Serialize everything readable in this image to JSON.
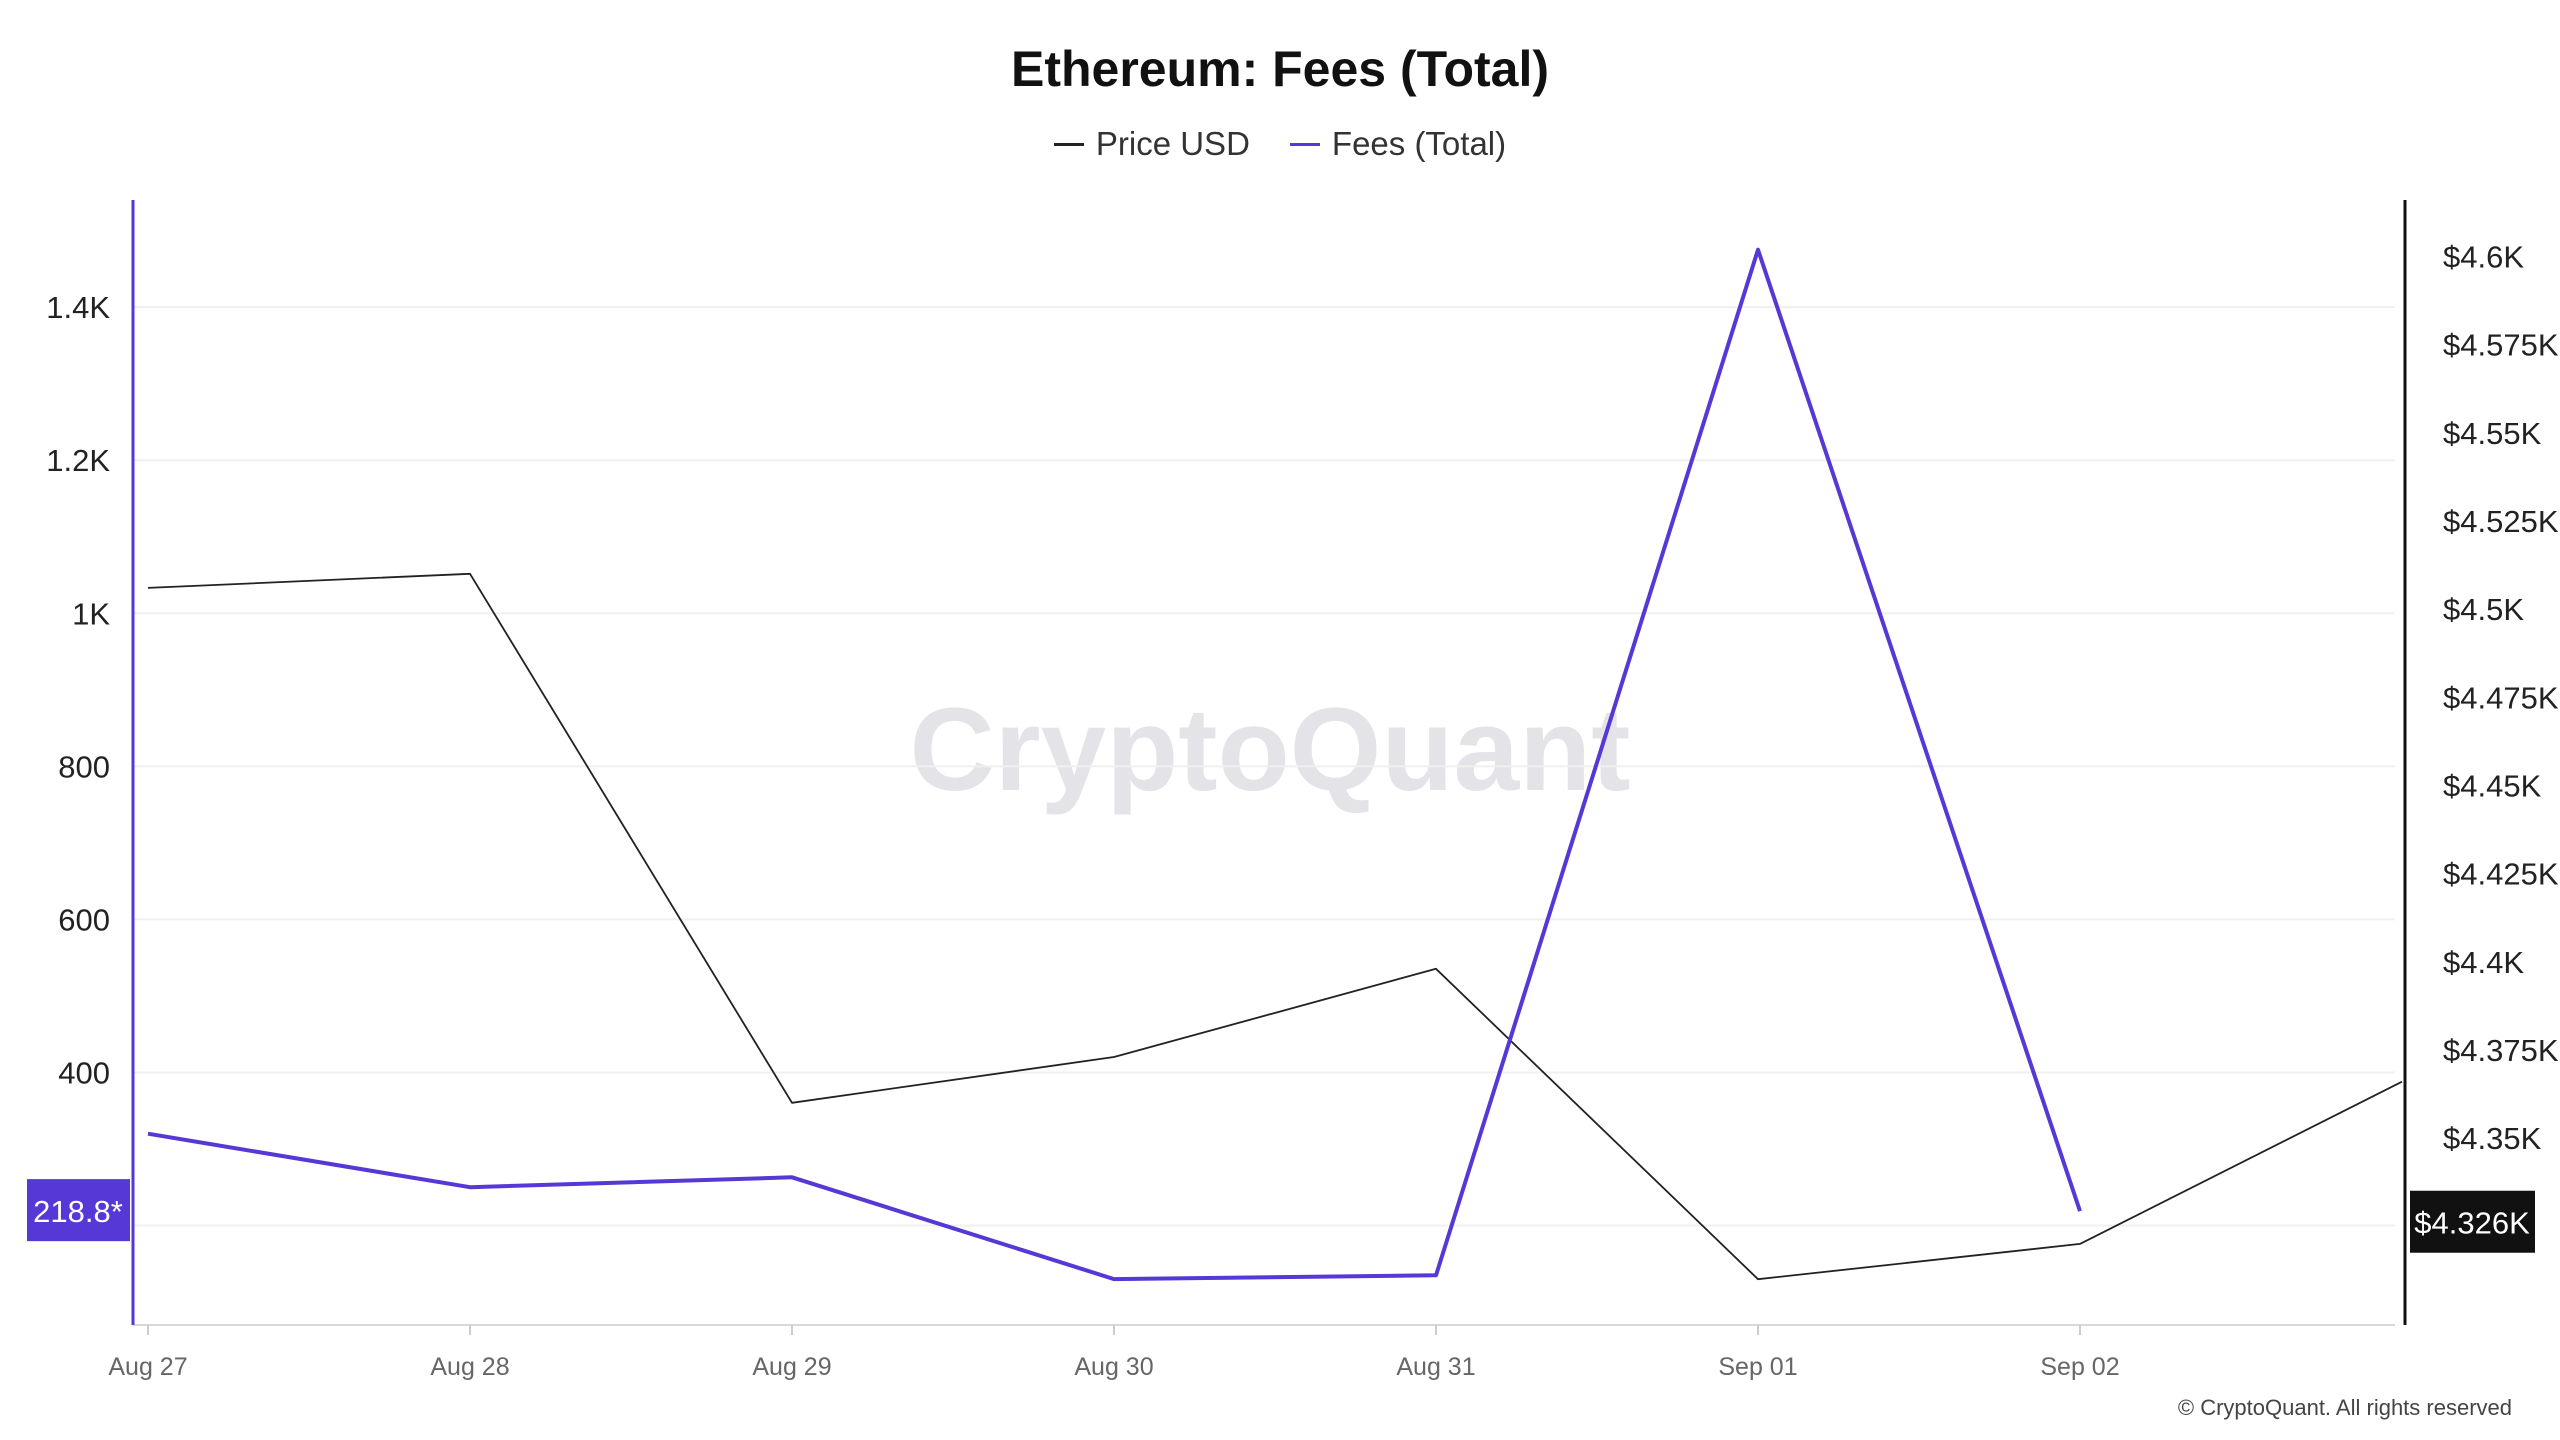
{
  "chart_data": {
    "type": "line",
    "title": "Ethereum: Fees (Total)",
    "watermark": "CryptoQuant",
    "copyright": "© CryptoQuant. All rights reserved",
    "categories": [
      "Aug 27",
      "Aug 28",
      "Aug 29",
      "Aug 30",
      "Aug 31",
      "Sep 01",
      "Sep 02",
      ""
    ],
    "grid": true,
    "legend_position": "top-center",
    "series": [
      {
        "name": "Price USD",
        "axis": "right",
        "color": "#222222",
        "values": [
          4506,
          4510,
          4360,
          4373,
          4398,
          4310,
          4320,
          4366
        ]
      },
      {
        "name": "Fees (Total)",
        "axis": "left",
        "color": "#5638d6",
        "values": [
          320,
          250,
          263,
          130,
          135,
          1475,
          218.8,
          null
        ]
      }
    ],
    "left_axis": {
      "ticks": [
        400,
        600,
        800,
        1000,
        1200,
        1400
      ],
      "tick_labels": [
        "400",
        "600",
        "800",
        "1K",
        "1.2K",
        "1.4K"
      ],
      "ylim": [
        70,
        1540
      ],
      "current_label": "218.8*",
      "current_value": 218.8,
      "color": "#5638d6"
    },
    "right_axis": {
      "ticks": [
        4350,
        4375,
        4400,
        4425,
        4450,
        4475,
        4500,
        4525,
        4550,
        4575,
        4600
      ],
      "tick_labels": [
        "$4.35K",
        "$4.375K",
        "$4.4K",
        "$4.425K",
        "$4.45K",
        "$4.475K",
        "$4.5K",
        "$4.525K",
        "$4.55K",
        "$4.575K",
        "$4.6K"
      ],
      "ylim": [
        4297,
        4616
      ],
      "current_label": "$4.326K",
      "current_value": 4326
    }
  }
}
